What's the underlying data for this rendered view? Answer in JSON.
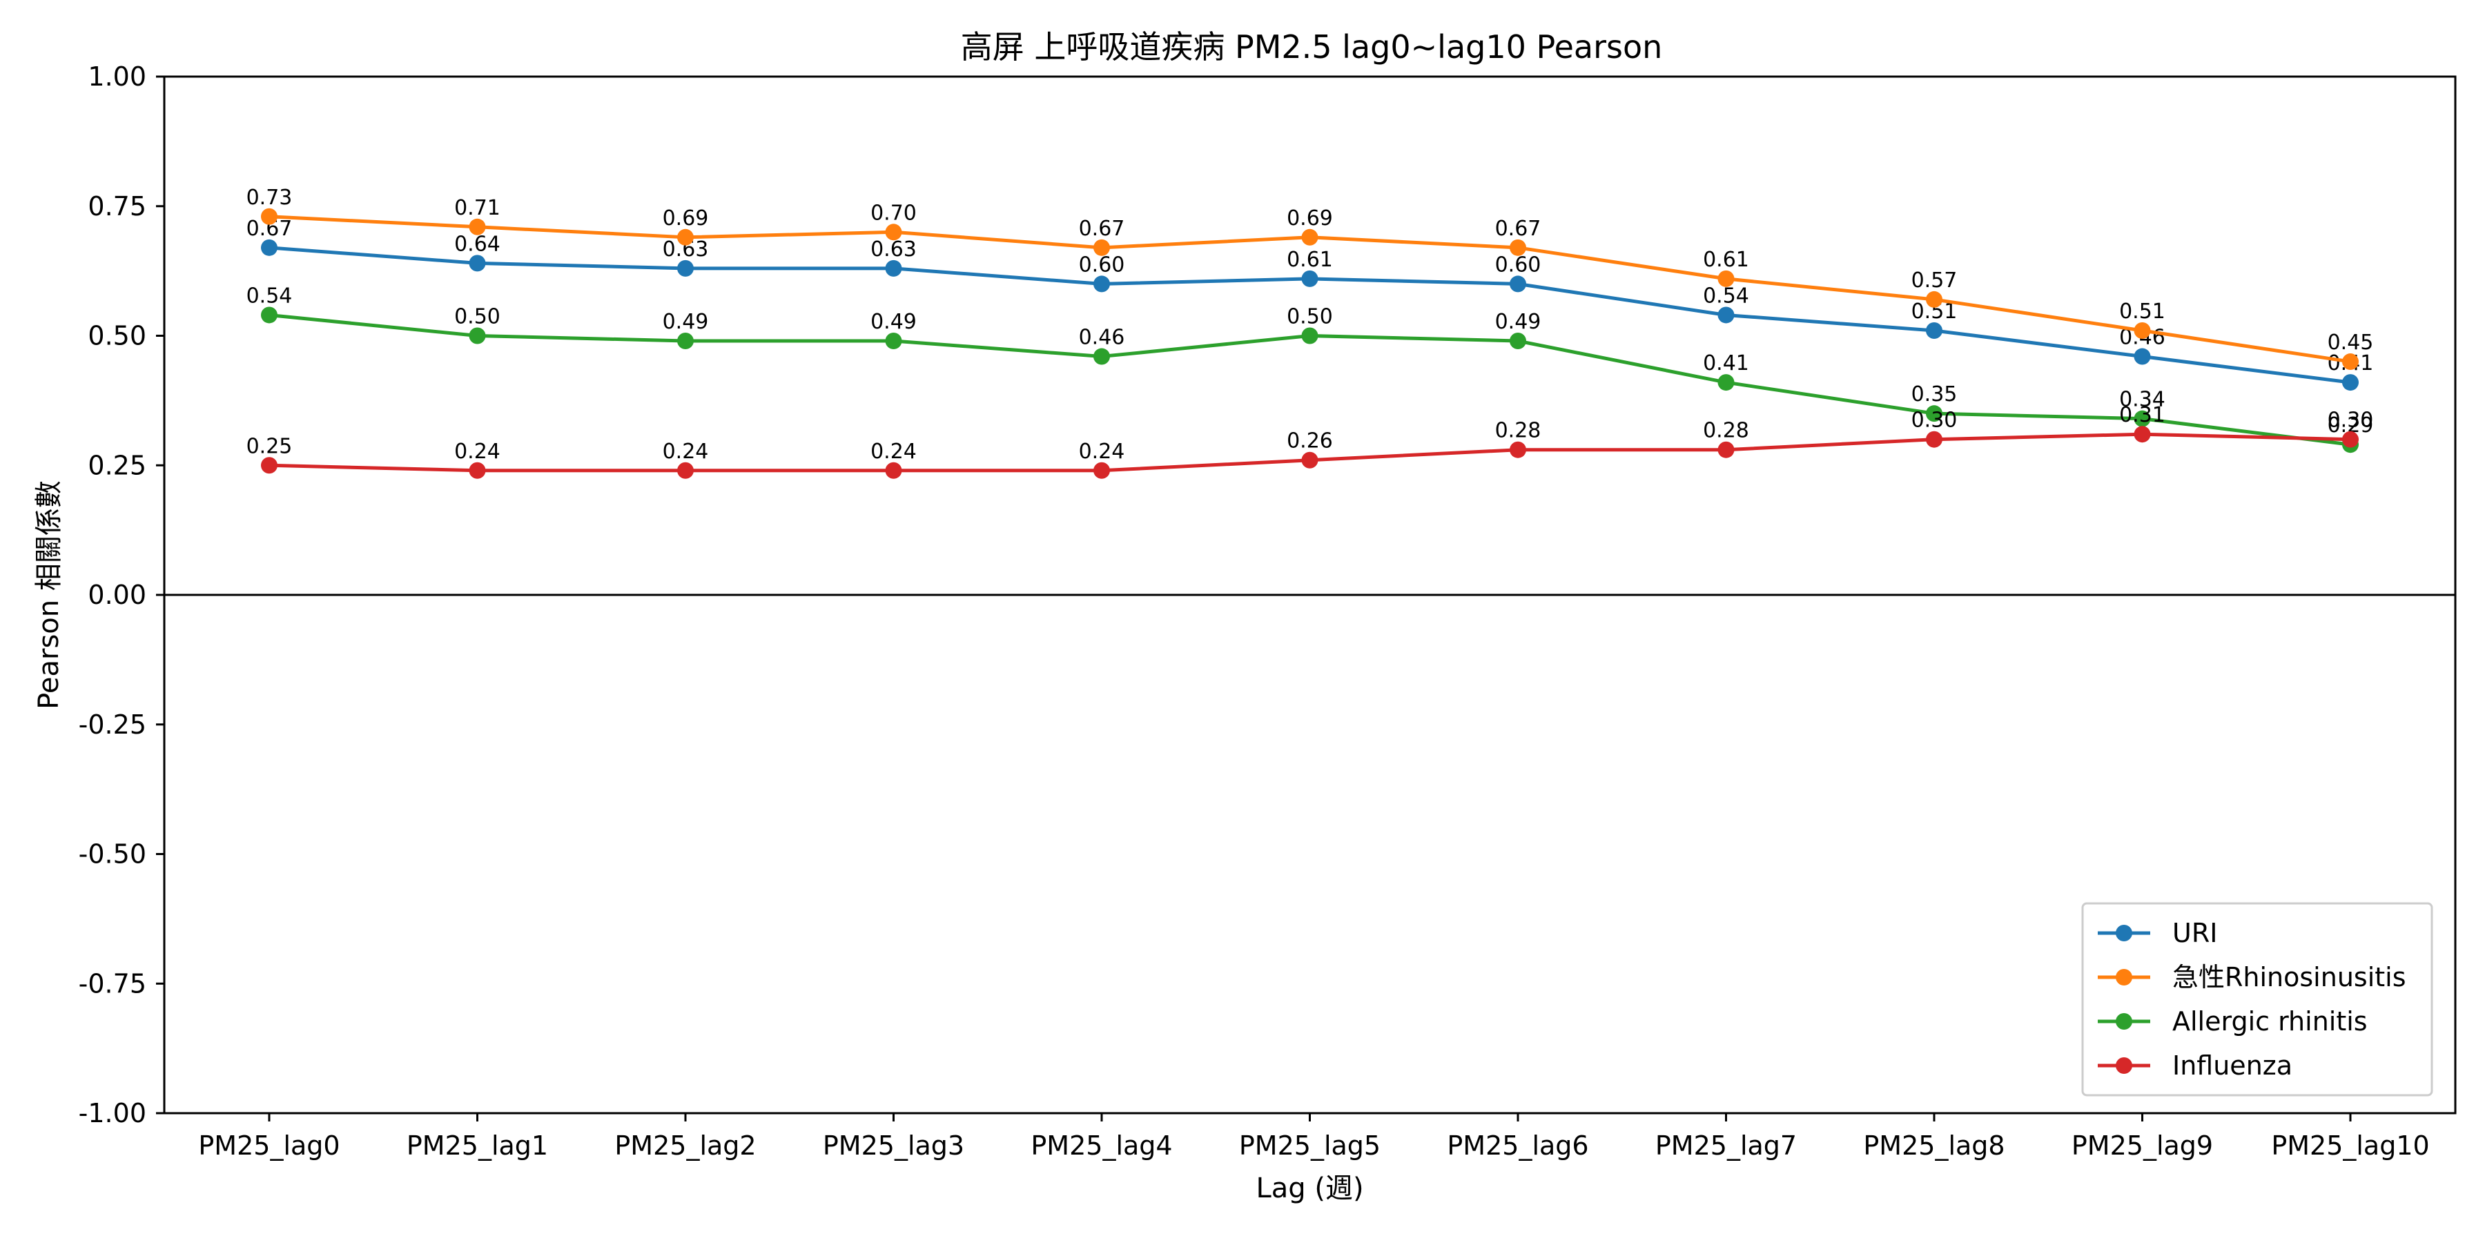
{
  "chart_data": {
    "type": "line",
    "title": "高屏 上呼吸道疾病 PM2.5 lag0~lag10 Pearson",
    "xlabel": "Lag (週)",
    "ylabel": "Pearson 相關係數",
    "categories": [
      "PM25_lag0",
      "PM25_lag1",
      "PM25_lag2",
      "PM25_lag3",
      "PM25_lag4",
      "PM25_lag5",
      "PM25_lag6",
      "PM25_lag7",
      "PM25_lag8",
      "PM25_lag9",
      "PM25_lag10"
    ],
    "ylim": [
      -1.0,
      1.0
    ],
    "yticks": [
      "1.00",
      "0.75",
      "0.50",
      "0.25",
      "0.00",
      "-0.25",
      "-0.50",
      "-0.75",
      "-1.00"
    ],
    "zero_line": true,
    "grid": false,
    "legend_position": "lower-right",
    "series": [
      {
        "name": "URI",
        "color": "#1f77b4",
        "values": [
          0.67,
          0.64,
          0.63,
          0.63,
          0.6,
          0.61,
          0.6,
          0.54,
          0.51,
          0.46,
          0.41
        ],
        "labels": [
          "0.67",
          "0.64",
          "0.63",
          "0.63",
          "0.60",
          "0.61",
          "0.60",
          "0.54",
          "0.51",
          "0.46",
          "0.41"
        ]
      },
      {
        "name": "急性Rhinosinusitis",
        "color": "#ff7f0e",
        "values": [
          0.73,
          0.71,
          0.69,
          0.7,
          0.67,
          0.69,
          0.67,
          0.61,
          0.57,
          0.51,
          0.45
        ],
        "labels": [
          "0.73",
          "0.71",
          "0.69",
          "0.70",
          "0.67",
          "0.69",
          "0.67",
          "0.61",
          "0.57",
          "0.51",
          "0.45"
        ]
      },
      {
        "name": "Allergic rhinitis",
        "color": "#2ca02c",
        "values": [
          0.54,
          0.5,
          0.49,
          0.49,
          0.46,
          0.5,
          0.49,
          0.41,
          0.35,
          0.34,
          0.29
        ],
        "labels": [
          "0.54",
          "0.50",
          "0.49",
          "0.49",
          "0.46",
          "0.50",
          "0.49",
          "0.41",
          "0.35",
          "0.34",
          "0.29"
        ]
      },
      {
        "name": "Influenza",
        "color": "#d62728",
        "values": [
          0.25,
          0.24,
          0.24,
          0.24,
          0.24,
          0.26,
          0.28,
          0.28,
          0.3,
          0.31,
          0.3
        ],
        "labels": [
          "0.25",
          "0.24",
          "0.24",
          "0.24",
          "0.24",
          "0.26",
          "0.28",
          "0.28",
          "0.30",
          "0.31",
          "0.30"
        ]
      }
    ]
  }
}
